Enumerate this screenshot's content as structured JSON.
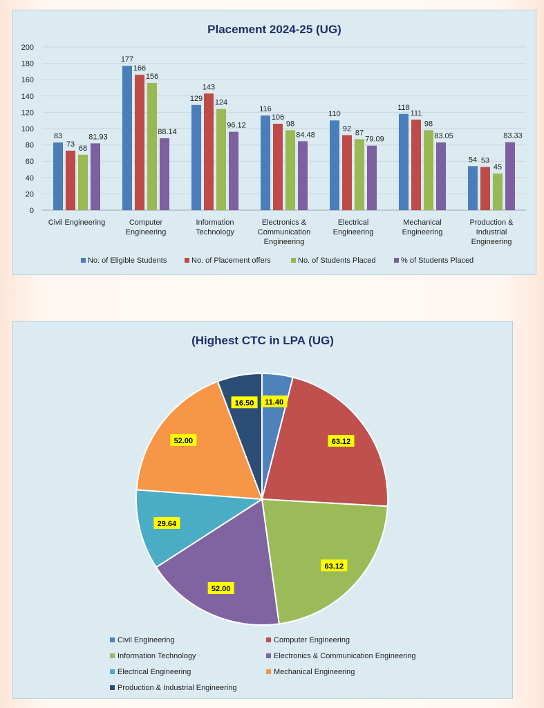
{
  "chart_data": [
    {
      "type": "bar",
      "title": "Placement 2024-25 (UG)",
      "categories": [
        [
          "Civil Engineering"
        ],
        [
          "Computer",
          "Engineering"
        ],
        [
          "Information",
          "Technology"
        ],
        [
          "Electronics &",
          "Communication",
          "Engineering"
        ],
        [
          "Electrical",
          "Engineering"
        ],
        [
          "Mechanical",
          "Engineering"
        ],
        [
          "Production &",
          "Industrial",
          "Engineering"
        ]
      ],
      "series": [
        {
          "name": "No. of Eligible Students",
          "color": "#4a7ebb",
          "values": [
            83,
            177,
            129,
            116,
            110,
            118,
            54
          ]
        },
        {
          "name": "No. of Placement offers",
          "color": "#be4b48",
          "values": [
            73,
            166,
            143,
            106,
            92,
            111,
            53
          ]
        },
        {
          "name": "No. of Students Placed",
          "color": "#98b954",
          "values": [
            68,
            156,
            124,
            98,
            87,
            98,
            45
          ]
        },
        {
          "name": "% of Students Placed",
          "color": "#7d60a0",
          "values": [
            81.93,
            88.14,
            96.12,
            84.48,
            79.09,
            83.05,
            83.33
          ]
        }
      ],
      "ylim": [
        0,
        200
      ],
      "yticks": [
        0,
        20,
        40,
        60,
        80,
        100,
        120,
        140,
        160,
        180,
        200
      ],
      "xlabel": "",
      "ylabel": "",
      "grid": true,
      "legend": "bottom"
    },
    {
      "type": "pie",
      "title": "(Highest CTC in LPA (UG)",
      "labels": [
        "Civil Engineering",
        "Computer Engineering",
        "Information Technology",
        "Electronics & Communication Engineering",
        "Electrical Engineering",
        "Mechanical Engineering",
        "Production & Industrial Engineering"
      ],
      "values": [
        11.4,
        63.12,
        63.12,
        52.0,
        29.64,
        52.0,
        16.5
      ],
      "value_text": [
        "11.40",
        "63.12",
        "63.12",
        "52.00",
        "29.64",
        "52.00",
        "16.50"
      ],
      "colors": [
        "#4f81bd",
        "#c0504d",
        "#9bbb59",
        "#8064a2",
        "#4bacc6",
        "#f79646",
        "#2c4d75"
      ],
      "legend": "bottom"
    }
  ]
}
